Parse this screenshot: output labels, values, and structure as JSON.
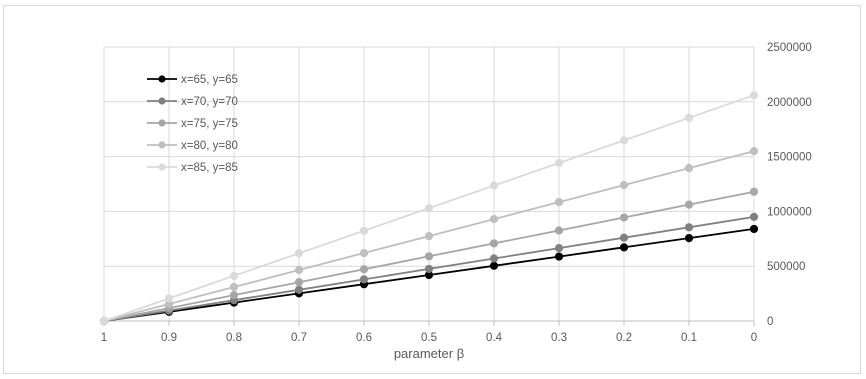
{
  "chart_data": {
    "type": "line",
    "title": "",
    "xlabel": "parameter β",
    "ylabel": "",
    "x": [
      1,
      0.9,
      0.8,
      0.7,
      0.6,
      0.5,
      0.4,
      0.3,
      0.2,
      0.1,
      0
    ],
    "x_tick_labels": [
      "1",
      "0.9",
      "0.8",
      "0.7",
      "0.6",
      "0.5",
      "0.4",
      "0.3",
      "0.2",
      "0.1",
      "0"
    ],
    "xlim": [
      1,
      0
    ],
    "ylim": [
      0,
      2500000
    ],
    "y_ticks": [
      0,
      500000,
      1000000,
      1500000,
      2000000,
      2500000
    ],
    "y_tick_labels": [
      "0",
      "500000",
      "1000000",
      "1500000",
      "2000000",
      "2500000"
    ],
    "y_axis_side": "right",
    "grid": true,
    "legend_position": "top-left",
    "series": [
      {
        "name": "x=65, y=65",
        "color": "#000000",
        "values": [
          0,
          84000,
          168000,
          252000,
          336000,
          420000,
          504000,
          588000,
          672000,
          756000,
          840000
        ]
      },
      {
        "name": "x=70, y=70",
        "color": "#808080",
        "values": [
          0,
          95000,
          190000,
          285000,
          380000,
          475000,
          570000,
          665000,
          760000,
          855000,
          950000
        ]
      },
      {
        "name": "x=75, y=75",
        "color": "#a6a6a6",
        "values": [
          0,
          118000,
          236000,
          354000,
          472000,
          590000,
          708000,
          826000,
          944000,
          1062000,
          1180000
        ]
      },
      {
        "name": "x=80, y=80",
        "color": "#bfbfbf",
        "values": [
          0,
          155000,
          310000,
          465000,
          620000,
          775000,
          930000,
          1085000,
          1240000,
          1395000,
          1550000
        ]
      },
      {
        "name": "x=85, y=85",
        "color": "#dadada",
        "values": [
          0,
          206000,
          412000,
          618000,
          824000,
          1030000,
          1236000,
          1442000,
          1648000,
          1854000,
          2060000
        ]
      }
    ]
  }
}
